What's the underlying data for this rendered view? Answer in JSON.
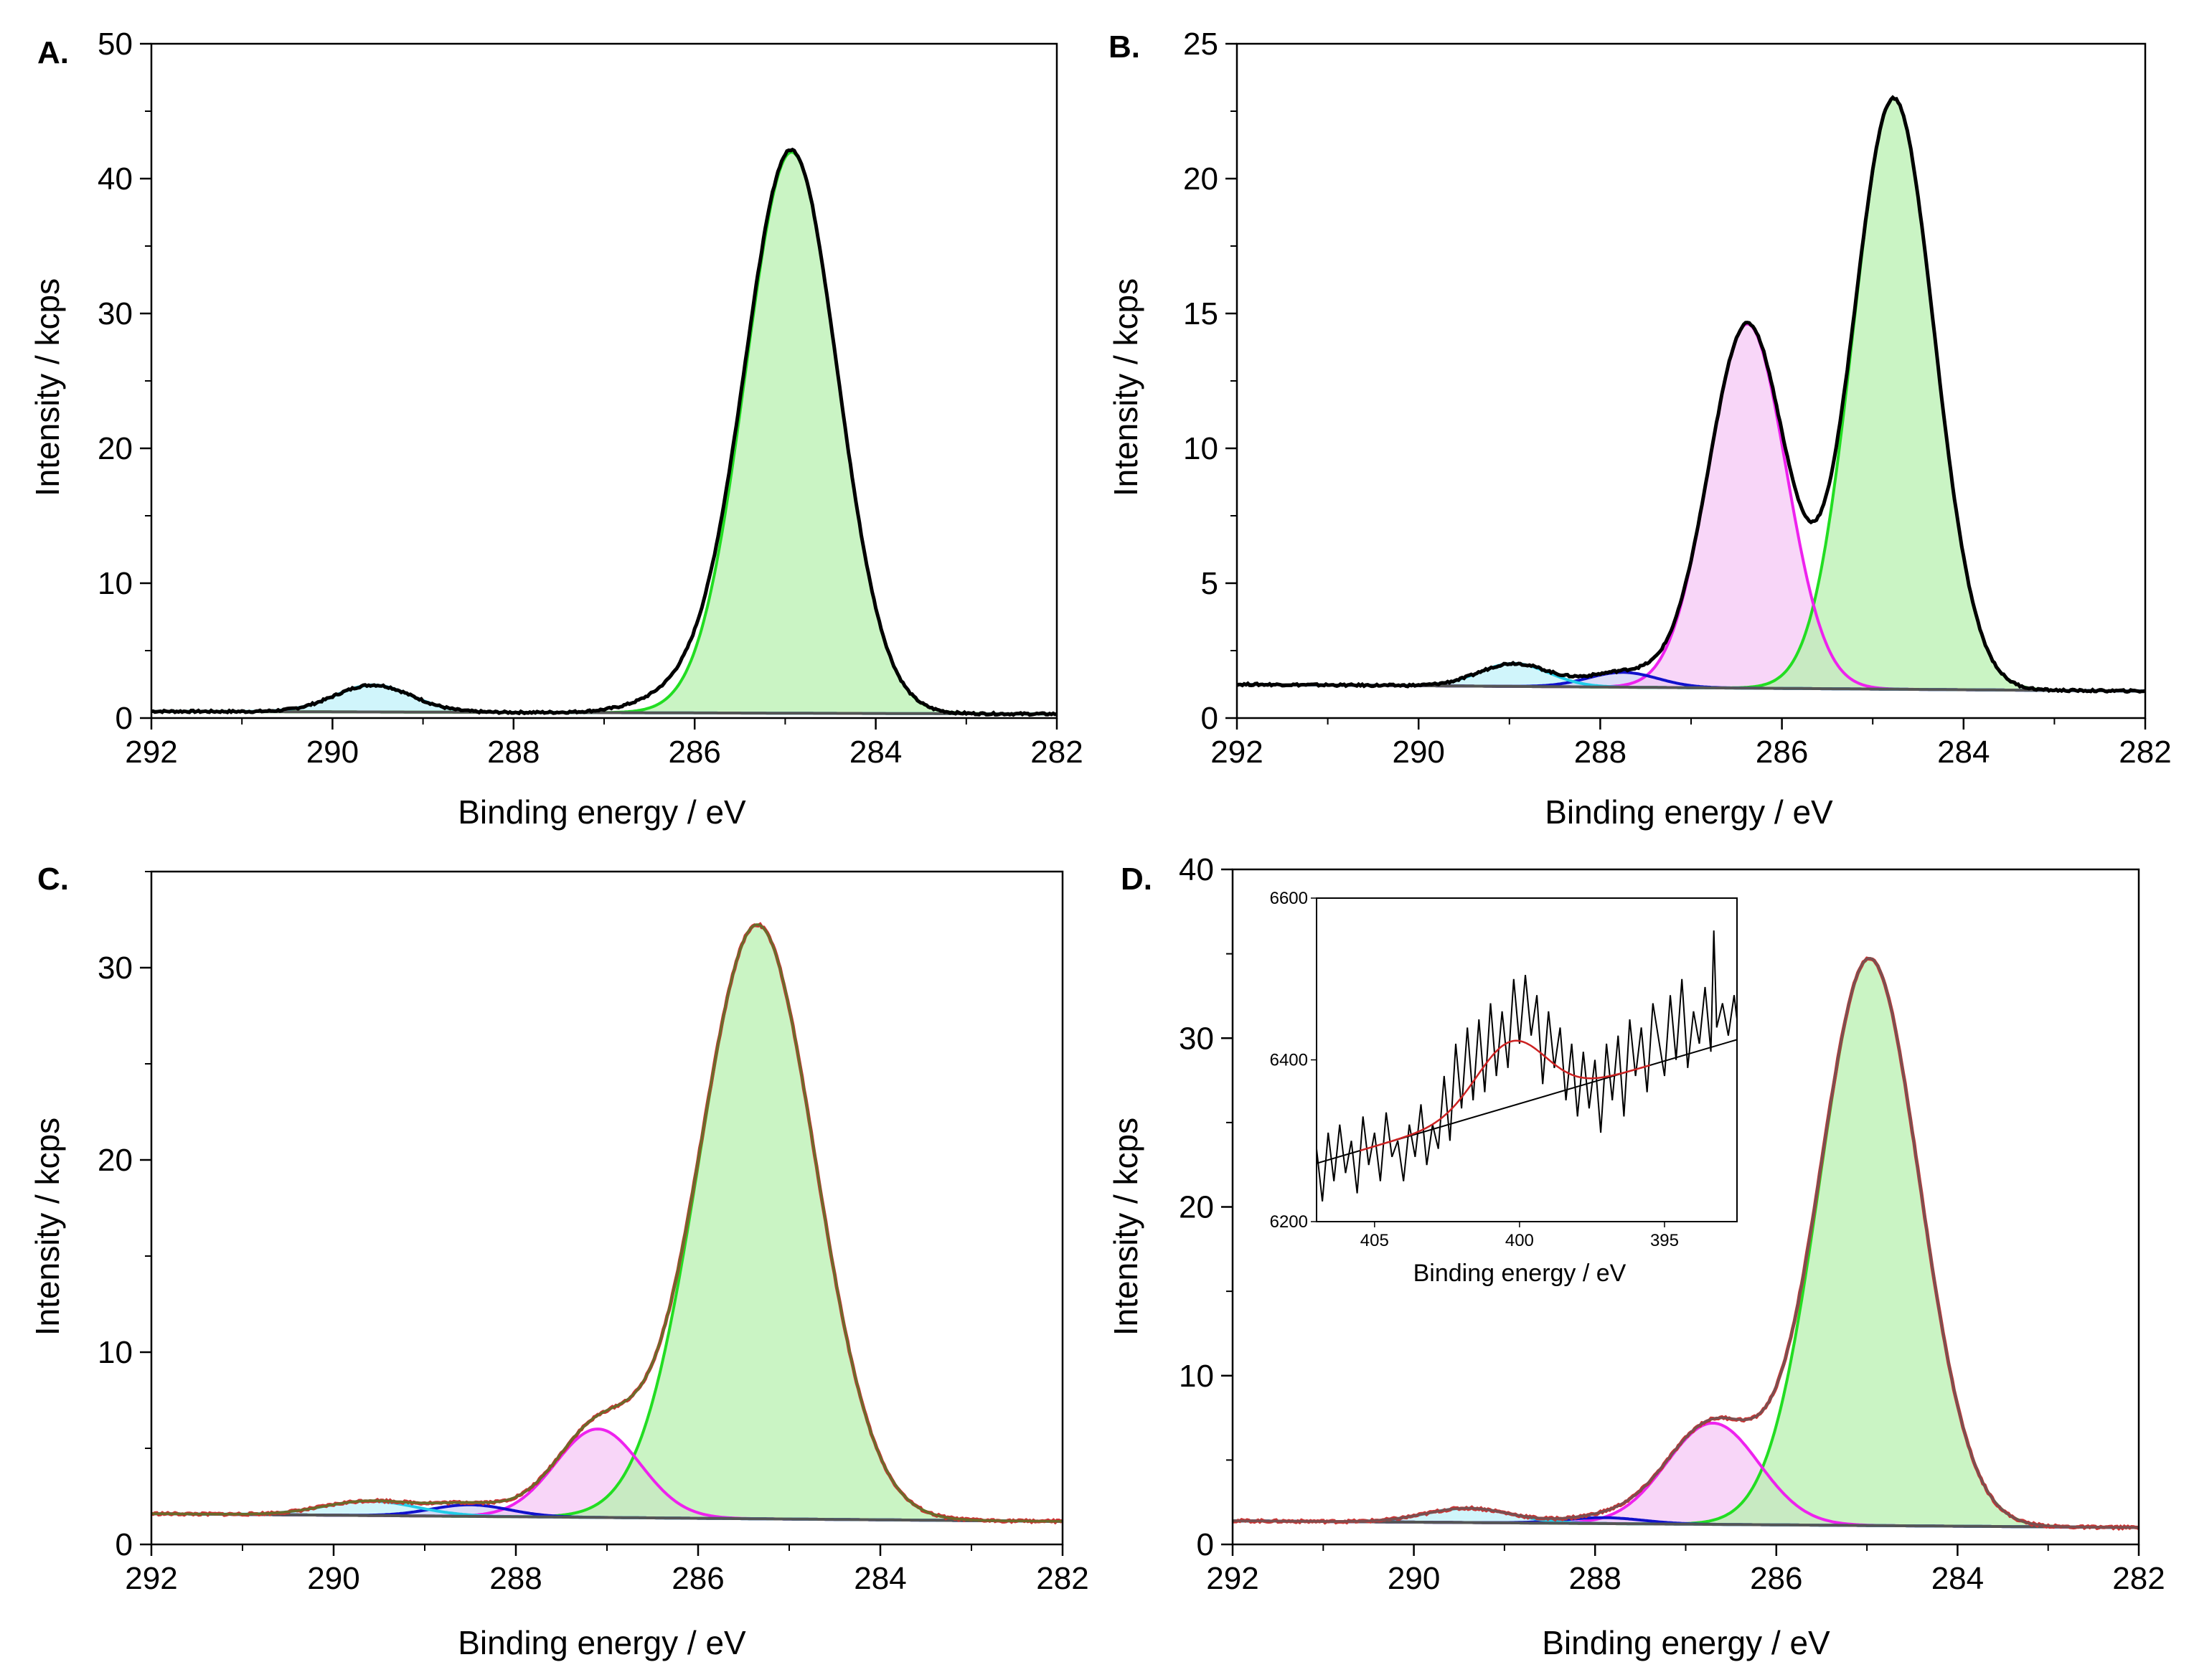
{
  "figure": {
    "panels": [
      "A.",
      "B.",
      "C.",
      "D."
    ]
  },
  "colors": {
    "measured": "#000000",
    "measured_cd": "#cc3333",
    "envelope_cd": "#6b6b2a",
    "envelope_d": "#7a5050",
    "background": "#555555",
    "cc": "#22dd22",
    "co": "#ee22ee",
    "co2": "#1111cc",
    "coo": "#22cce8",
    "fill_cc": "#b8f0b0",
    "fill_co": "#f5c8f5",
    "fill_bg": "#c8c8c8",
    "inset_fit": "#cc2222"
  },
  "chart_data": [
    {
      "panel": "A.",
      "type": "line",
      "title": "",
      "xlabel": "Binding energy / eV",
      "ylabel": "Intensity / kcps",
      "xlim": [
        292,
        282
      ],
      "ylim": [
        0,
        50
      ],
      "xticks": [
        "292",
        "290",
        "288",
        "286",
        "284",
        "282"
      ],
      "yticks": [
        "0",
        "10",
        "20",
        "30",
        "40",
        "50"
      ],
      "background": {
        "start": 0.5,
        "end": 0.3
      },
      "components": [
        {
          "name": "C-C",
          "center": 284.93,
          "height": 41.6,
          "fwhm": 1.2,
          "color": "#22dd22",
          "fill": "#b8f0b0"
        },
        {
          "name": "O-C=O",
          "center": 289.55,
          "height": 2.0,
          "fwhm": 1.0,
          "color": "#22cce8",
          "fill": "#c0f2fa"
        }
      ],
      "measured_extra": [
        {
          "center": 286.0,
          "height": 1.6,
          "fwhm": 1.2
        }
      ],
      "legend": "none"
    },
    {
      "panel": "B.",
      "type": "line",
      "title": "",
      "xlabel": "Binding energy / eV",
      "ylabel": "Intensity / kcps",
      "xlim": [
        292,
        282
      ],
      "ylim": [
        0,
        25
      ],
      "xticks": [
        "292",
        "290",
        "288",
        "286",
        "284",
        "282"
      ],
      "yticks": [
        "0",
        "5",
        "10",
        "15",
        "20",
        "25"
      ],
      "background": {
        "start": 1.25,
        "end": 1.0
      },
      "components": [
        {
          "name": "C-C",
          "center": 284.77,
          "height": 21.9,
          "fwhm": 1.05,
          "color": "#22dd22",
          "fill": "#b8f0b0"
        },
        {
          "name": "C-O",
          "center": 286.38,
          "height": 13.5,
          "fwhm": 1.0,
          "color": "#ee22ee",
          "fill": "#f5c8f5"
        },
        {
          "name": "C=O",
          "center": 287.75,
          "height": 0.55,
          "fwhm": 0.9,
          "color": "#1111cc",
          "fill": "#d0d0f5"
        },
        {
          "name": "O-C=O",
          "center": 288.95,
          "height": 0.85,
          "fwhm": 0.9,
          "color": "#22cce8",
          "fill": "#c0f2fa"
        }
      ],
      "legend": "none"
    },
    {
      "panel": "C.",
      "type": "line",
      "title": "",
      "xlabel": "Binding energy / eV",
      "ylabel": "Intensity / kcps",
      "xlim": [
        292,
        282
      ],
      "ylim": [
        0,
        35
      ],
      "xticks": [
        "292",
        "290",
        "288",
        "286",
        "284",
        "282"
      ],
      "yticks": [
        "0",
        "10",
        "20",
        "30"
      ],
      "background": {
        "start": 1.6,
        "end": 1.2
      },
      "components": [
        {
          "name": "C-C",
          "center": 285.35,
          "height": 30.9,
          "fwhm": 1.5,
          "color": "#22dd22",
          "fill": "#b8f0b0"
        },
        {
          "name": "C-O",
          "center": 287.1,
          "height": 4.6,
          "fwhm": 1.1,
          "color": "#ee22ee",
          "fill": "#f5c8f5"
        },
        {
          "name": "C=O",
          "center": 288.5,
          "height": 0.6,
          "fwhm": 1.0,
          "color": "#1111cc",
          "fill": "#d0d0f5"
        },
        {
          "name": "O-C=O",
          "center": 289.6,
          "height": 0.75,
          "fwhm": 1.2,
          "color": "#22cce8",
          "fill": "#c0f2fa"
        }
      ],
      "legend": "none"
    },
    {
      "panel": "D.",
      "type": "line",
      "title": "",
      "xlabel": "Binding energy / eV",
      "ylabel": "Intensity / kcps",
      "xlim": [
        292,
        282
      ],
      "ylim": [
        0,
        40
      ],
      "xticks": [
        "292",
        "290",
        "288",
        "286",
        "284",
        "282"
      ],
      "yticks": [
        "0",
        "10",
        "20",
        "30",
        "40"
      ],
      "background": {
        "start": 1.4,
        "end": 1.0
      },
      "components": [
        {
          "name": "C-C",
          "center": 284.97,
          "height": 33.6,
          "fwhm": 1.3,
          "color": "#22dd22",
          "fill": "#b8f0b0"
        },
        {
          "name": "C-O",
          "center": 286.7,
          "height": 6.0,
          "fwhm": 1.2,
          "color": "#ee22ee",
          "fill": "#f5c8f5"
        },
        {
          "name": "C=O",
          "center": 287.9,
          "height": 0.35,
          "fwhm": 1.0,
          "color": "#1111cc",
          "fill": "#d0d0f5"
        },
        {
          "name": "O-C=O",
          "center": 289.4,
          "height": 0.85,
          "fwhm": 1.1,
          "color": "#22cce8",
          "fill": "#c0f2fa"
        }
      ],
      "inset": {
        "type": "line",
        "xlabel": "Binding energy / eV",
        "xlim": [
          407,
          392.5
        ],
        "ylim": [
          6200,
          6600
        ],
        "xticks": [
          "405",
          "400",
          "395"
        ],
        "yticks": [
          "6200",
          "6400",
          "6600"
        ],
        "baseline": {
          "x": [
            407,
            392.5
          ],
          "y": [
            6272,
            6425
          ]
        },
        "fit_peak": {
          "center": 400.3,
          "height": 80,
          "fwhm": 2.8
        },
        "noise": [
          [
            407.0,
            6290
          ],
          [
            406.8,
            6225
          ],
          [
            406.6,
            6310
          ],
          [
            406.4,
            6250
          ],
          [
            406.2,
            6320
          ],
          [
            406.0,
            6260
          ],
          [
            405.8,
            6300
          ],
          [
            405.6,
            6235
          ],
          [
            405.4,
            6330
          ],
          [
            405.2,
            6270
          ],
          [
            405.0,
            6310
          ],
          [
            404.8,
            6250
          ],
          [
            404.6,
            6335
          ],
          [
            404.4,
            6280
          ],
          [
            404.2,
            6300
          ],
          [
            404.0,
            6250
          ],
          [
            403.8,
            6320
          ],
          [
            403.6,
            6280
          ],
          [
            403.4,
            6345
          ],
          [
            403.2,
            6270
          ],
          [
            403.0,
            6320
          ],
          [
            402.8,
            6290
          ],
          [
            402.6,
            6380
          ],
          [
            402.4,
            6300
          ],
          [
            402.2,
            6420
          ],
          [
            402.0,
            6340
          ],
          [
            401.8,
            6440
          ],
          [
            401.6,
            6350
          ],
          [
            401.4,
            6450
          ],
          [
            401.2,
            6360
          ],
          [
            401.0,
            6470
          ],
          [
            400.8,
            6380
          ],
          [
            400.6,
            6460
          ],
          [
            400.4,
            6390
          ],
          [
            400.2,
            6500
          ],
          [
            400.0,
            6420
          ],
          [
            399.8,
            6505
          ],
          [
            399.6,
            6430
          ],
          [
            399.4,
            6480
          ],
          [
            399.2,
            6370
          ],
          [
            399.0,
            6460
          ],
          [
            398.8,
            6390
          ],
          [
            398.6,
            6440
          ],
          [
            398.4,
            6350
          ],
          [
            398.2,
            6420
          ],
          [
            398.0,
            6330
          ],
          [
            397.8,
            6410
          ],
          [
            397.6,
            6340
          ],
          [
            397.4,
            6400
          ],
          [
            397.2,
            6310
          ],
          [
            397.0,
            6420
          ],
          [
            396.8,
            6350
          ],
          [
            396.6,
            6430
          ],
          [
            396.4,
            6330
          ],
          [
            396.2,
            6450
          ],
          [
            396.0,
            6380
          ],
          [
            395.8,
            6440
          ],
          [
            395.6,
            6360
          ],
          [
            395.4,
            6470
          ],
          [
            395.0,
            6380
          ],
          [
            394.8,
            6480
          ],
          [
            394.6,
            6400
          ],
          [
            394.4,
            6500
          ],
          [
            394.2,
            6390
          ],
          [
            394.0,
            6460
          ],
          [
            393.8,
            6420
          ],
          [
            393.6,
            6490
          ],
          [
            393.4,
            6410
          ],
          [
            393.3,
            6560
          ],
          [
            393.2,
            6440
          ],
          [
            393.0,
            6470
          ],
          [
            392.8,
            6430
          ],
          [
            392.6,
            6480
          ],
          [
            392.5,
            6450
          ]
        ]
      },
      "legend": "none"
    }
  ]
}
